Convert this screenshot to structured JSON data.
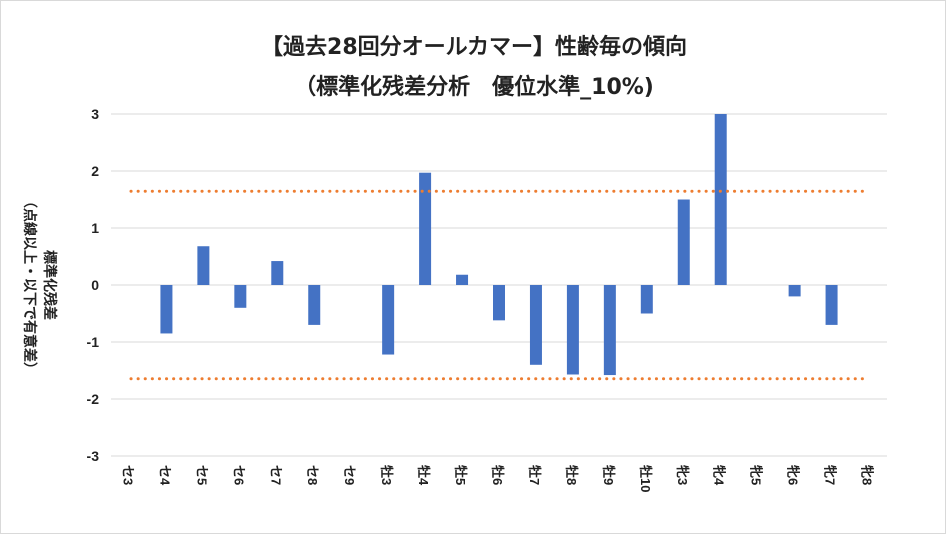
{
  "chart_data": {
    "type": "bar",
    "title": "【過去28回分オールカマー】性齢毎の傾向",
    "subtitle": "（標準化残差分析　優位水準_10%)",
    "ylabel_line1": "標準化残差",
    "ylabel_line2": "（点線以上・以下で有意差）",
    "categories": [
      "セ3",
      "セ4",
      "セ5",
      "セ6",
      "セ7",
      "セ8",
      "セ9",
      "牡3",
      "牡4",
      "牡5",
      "牡6",
      "牡7",
      "牡8",
      "牡9",
      "牡10",
      "牝3",
      "牝4",
      "牝5",
      "牝6",
      "牝7",
      "牝8"
    ],
    "values": [
      0,
      -0.85,
      0.68,
      -0.4,
      0.42,
      -0.7,
      0,
      -1.22,
      1.97,
      0.18,
      -0.62,
      -1.4,
      -1.57,
      -1.58,
      -0.5,
      1.5,
      3.0,
      0,
      -0.2,
      -0.7,
      0
    ],
    "thresholds": [
      1.645,
      -1.645
    ],
    "ylim": [
      -3,
      3
    ],
    "yticks": [
      3,
      2,
      1,
      0,
      -1,
      -2,
      -3
    ],
    "grid": true,
    "colors": {
      "bar": "#4472c4",
      "threshold": "#ed7d31",
      "grid": "#d9d9d9"
    }
  }
}
